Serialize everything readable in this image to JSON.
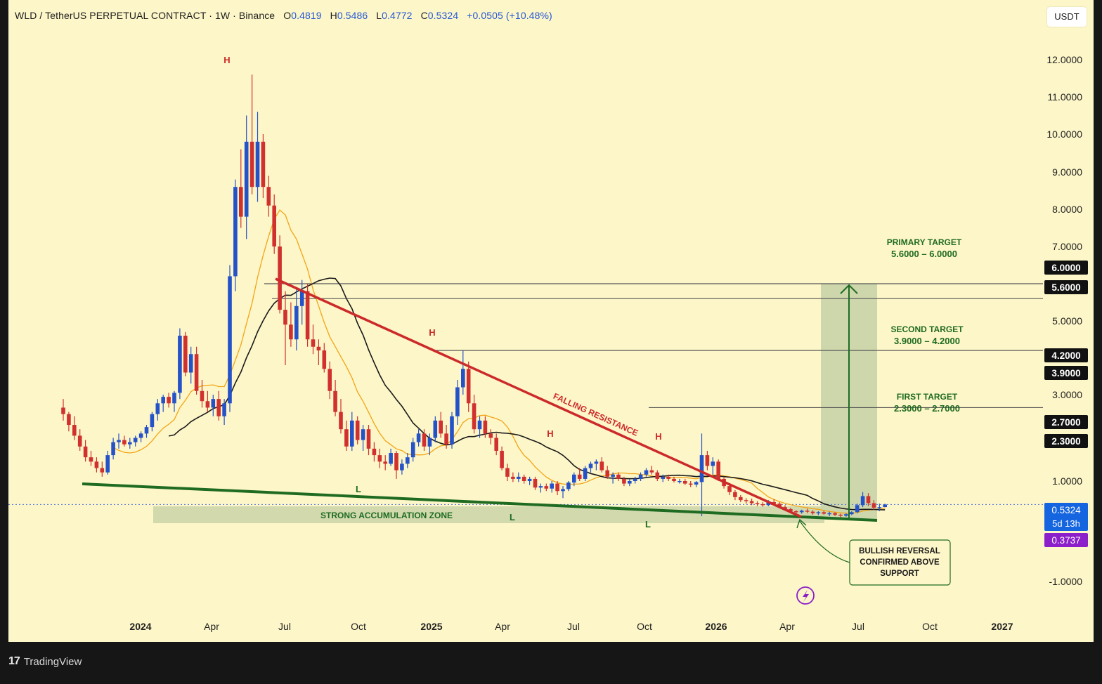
{
  "header": {
    "title": "WLD / TetherUS PERPETUAL CONTRACT · 1W · Binance",
    "open_label": "O",
    "open": "0.4819",
    "high_label": "H",
    "high": "0.5486",
    "low_label": "L",
    "low": "0.4772",
    "close_label": "C",
    "close": "0.5324",
    "change": "+0.0505 (+10.48%)"
  },
  "unit_button": "USDT",
  "footer": {
    "brand": "TradingView",
    "logo": "17"
  },
  "colors": {
    "background": "#fdf6c8",
    "bull": "#2452c9",
    "bear": "#d0312f",
    "resistance": "#cc2a2a",
    "support": "#1f6b22",
    "ema_fast": "#f2a516",
    "ema_slow": "#1a1a1a",
    "target_zone": "#c9d4a8",
    "last_price": "#1565e0",
    "countdown": "#8b1fc9"
  },
  "chart_data": {
    "type": "candlestick",
    "symbol": "WLD / TetherUS PERPETUAL CONTRACT",
    "interval": "1W",
    "exchange": "Binance",
    "y_axis": {
      "ticks": [
        "12.0000",
        "11.0000",
        "10.0000",
        "9.0000",
        "8.0000",
        "7.0000",
        "5.0000",
        "3.0000",
        "1.0000",
        "-1.0000"
      ],
      "tick_values": [
        12,
        11,
        10,
        9,
        8,
        7,
        5,
        3,
        1,
        -1
      ],
      "range": [
        -1.0,
        12.0
      ]
    },
    "x_axis": {
      "ticks": [
        "2024",
        "Apr",
        "Jul",
        "Oct",
        "2025",
        "Apr",
        "Jul",
        "Oct",
        "2026",
        "Apr",
        "Jul",
        "Oct",
        "2027"
      ],
      "bold": [
        true,
        false,
        false,
        false,
        true,
        false,
        false,
        false,
        true,
        false,
        false,
        false,
        true
      ]
    },
    "price_labels": [
      {
        "text": "6.0000",
        "value": 6.0,
        "kind": "level"
      },
      {
        "text": "5.6000",
        "value": 5.6,
        "kind": "level"
      },
      {
        "text": "4.2000",
        "value": 4.2,
        "kind": "level"
      },
      {
        "text": "3.9000",
        "value": 3.9,
        "kind": "level"
      },
      {
        "text": "2.7000",
        "value": 2.7,
        "kind": "level"
      },
      {
        "text": "2.3000",
        "value": 2.3,
        "kind": "level"
      },
      {
        "text": "0.5324",
        "value": 0.5324,
        "kind": "last"
      },
      {
        "text": "5d 13h",
        "kind": "countdown"
      },
      {
        "text": "0.3737",
        "value": 0.3737,
        "kind": "marker"
      }
    ],
    "targets": [
      {
        "title": "PRIMARY TARGET",
        "range": "5.6000 – 6.0000",
        "low": 5.6,
        "high": 6.0
      },
      {
        "title": "SECOND TARGET",
        "range": "3.9000 – 4.2000",
        "low": 3.9,
        "high": 4.2
      },
      {
        "title": "FIRST TARGET",
        "range": "2.3000 – 2.7000",
        "low": 2.3,
        "high": 2.7
      }
    ],
    "annotations": {
      "falling_resistance": "FALLING RESISTANCE",
      "accumulation_zone": "STRONG ACCUMULATION ZONE",
      "bullish_callout": [
        "BULLISH REVERSAL",
        "CONFIRMED ABOVE",
        "SUPPORT"
      ],
      "high_marker": "H",
      "low_marker": "L"
    },
    "candles": [
      [
        2.7,
        2.9,
        2.4,
        2.55
      ],
      [
        2.55,
        2.6,
        2.15,
        2.3
      ],
      [
        2.3,
        2.5,
        1.95,
        2.05
      ],
      [
        2.05,
        2.2,
        1.7,
        1.8
      ],
      [
        1.8,
        1.95,
        1.45,
        1.55
      ],
      [
        1.55,
        1.7,
        1.35,
        1.45
      ],
      [
        1.45,
        1.55,
        1.2,
        1.3
      ],
      [
        1.3,
        1.45,
        1.1,
        1.2
      ],
      [
        1.2,
        1.7,
        1.15,
        1.6
      ],
      [
        1.6,
        2.0,
        1.5,
        1.9
      ],
      [
        1.9,
        2.1,
        1.75,
        1.95
      ],
      [
        1.95,
        2.05,
        1.8,
        1.85
      ],
      [
        1.85,
        2.0,
        1.75,
        1.9
      ],
      [
        1.9,
        2.05,
        1.8,
        2.0
      ],
      [
        2.0,
        2.15,
        1.9,
        2.1
      ],
      [
        2.1,
        2.3,
        2.0,
        2.25
      ],
      [
        2.25,
        2.6,
        2.15,
        2.55
      ],
      [
        2.55,
        2.9,
        2.4,
        2.8
      ],
      [
        2.8,
        3.0,
        2.6,
        2.95
      ],
      [
        2.95,
        3.05,
        2.7,
        2.8
      ],
      [
        2.8,
        3.1,
        2.6,
        3.05
      ],
      [
        3.05,
        4.8,
        2.9,
        4.6
      ],
      [
        4.6,
        4.7,
        3.5,
        3.6
      ],
      [
        3.6,
        4.3,
        3.3,
        4.1
      ],
      [
        4.1,
        4.3,
        3.0,
        3.1
      ],
      [
        3.1,
        3.4,
        2.7,
        2.85
      ],
      [
        2.85,
        3.1,
        2.6,
        2.7
      ],
      [
        2.7,
        3.0,
        2.5,
        2.9
      ],
      [
        2.9,
        3.1,
        2.4,
        2.5
      ],
      [
        2.5,
        2.9,
        2.3,
        2.8
      ],
      [
        2.8,
        6.5,
        2.6,
        6.2
      ],
      [
        6.2,
        8.8,
        5.8,
        8.6
      ],
      [
        8.6,
        9.6,
        7.5,
        7.8
      ],
      [
        7.8,
        10.5,
        7.2,
        9.8
      ],
      [
        9.8,
        11.6,
        8.4,
        8.6
      ],
      [
        8.6,
        10.6,
        8.2,
        9.8
      ],
      [
        9.8,
        10.0,
        8.3,
        8.6
      ],
      [
        8.6,
        8.9,
        7.8,
        8.1
      ],
      [
        8.1,
        8.4,
        6.8,
        7.0
      ],
      [
        7.0,
        7.3,
        5.2,
        5.3
      ],
      [
        5.3,
        5.8,
        3.8,
        4.9
      ],
      [
        4.9,
        5.5,
        4.3,
        4.5
      ],
      [
        4.5,
        5.9,
        4.2,
        5.4
      ],
      [
        5.4,
        6.1,
        4.9,
        5.8
      ],
      [
        5.8,
        6.0,
        4.3,
        4.5
      ],
      [
        4.5,
        4.9,
        4.1,
        4.3
      ],
      [
        4.3,
        4.5,
        3.8,
        4.2
      ],
      [
        4.2,
        4.4,
        3.6,
        3.7
      ],
      [
        3.7,
        3.9,
        2.9,
        3.1
      ],
      [
        3.1,
        3.4,
        2.5,
        2.6
      ],
      [
        2.6,
        2.9,
        2.1,
        2.2
      ],
      [
        2.2,
        2.4,
        1.7,
        1.8
      ],
      [
        1.8,
        2.6,
        1.7,
        2.4
      ],
      [
        2.4,
        2.5,
        1.85,
        1.95
      ],
      [
        1.95,
        2.3,
        1.7,
        2.2
      ],
      [
        2.2,
        2.3,
        1.6,
        1.75
      ],
      [
        1.75,
        1.9,
        1.45,
        1.6
      ],
      [
        1.6,
        1.75,
        1.3,
        1.45
      ],
      [
        1.45,
        1.6,
        1.25,
        1.4
      ],
      [
        1.4,
        1.75,
        1.35,
        1.65
      ],
      [
        1.65,
        1.7,
        1.05,
        1.25
      ],
      [
        1.25,
        1.5,
        1.15,
        1.4
      ],
      [
        1.4,
        1.65,
        1.3,
        1.55
      ],
      [
        1.55,
        2.0,
        1.45,
        1.9
      ],
      [
        1.9,
        2.2,
        1.8,
        2.1
      ],
      [
        2.1,
        2.2,
        1.7,
        1.8
      ],
      [
        1.8,
        2.1,
        1.6,
        2.0
      ],
      [
        2.0,
        2.5,
        1.9,
        2.4
      ],
      [
        2.4,
        2.6,
        2.0,
        2.1
      ],
      [
        2.1,
        2.3,
        1.75,
        1.85
      ],
      [
        1.85,
        2.6,
        1.75,
        2.5
      ],
      [
        2.5,
        3.4,
        2.3,
        3.2
      ],
      [
        3.2,
        4.2,
        3.0,
        3.7
      ],
      [
        3.7,
        3.9,
        2.6,
        2.8
      ],
      [
        2.8,
        3.0,
        2.1,
        2.2
      ],
      [
        2.2,
        2.5,
        2.0,
        2.4
      ],
      [
        2.4,
        2.5,
        2.0,
        2.1
      ],
      [
        2.1,
        2.2,
        1.85,
        2.0
      ],
      [
        2.0,
        2.1,
        1.6,
        1.7
      ],
      [
        1.7,
        1.8,
        1.25,
        1.3
      ],
      [
        1.3,
        1.4,
        1.0,
        1.1
      ],
      [
        1.1,
        1.2,
        0.98,
        1.05
      ],
      [
        1.05,
        1.2,
        0.98,
        1.1
      ],
      [
        1.1,
        1.15,
        0.95,
        1.0
      ],
      [
        1.0,
        1.1,
        0.92,
        1.05
      ],
      [
        1.05,
        1.1,
        0.82,
        0.87
      ],
      [
        0.87,
        0.95,
        0.77,
        0.9
      ],
      [
        0.9,
        0.95,
        0.8,
        0.85
      ],
      [
        0.85,
        1.0,
        0.77,
        0.95
      ],
      [
        0.95,
        1.0,
        0.72,
        0.8
      ],
      [
        0.8,
        0.9,
        0.66,
        0.84
      ],
      [
        0.84,
        1.0,
        0.8,
        0.97
      ],
      [
        0.97,
        1.2,
        0.9,
        1.15
      ],
      [
        1.15,
        1.3,
        1.0,
        1.05
      ],
      [
        1.05,
        1.35,
        1.0,
        1.3
      ],
      [
        1.3,
        1.45,
        1.2,
        1.4
      ],
      [
        1.4,
        1.5,
        1.25,
        1.45
      ],
      [
        1.45,
        1.55,
        1.2,
        1.25
      ],
      [
        1.25,
        1.35,
        1.05,
        1.1
      ],
      [
        1.1,
        1.2,
        0.95,
        1.15
      ],
      [
        1.15,
        1.2,
        1.0,
        1.05
      ],
      [
        1.05,
        1.1,
        0.9,
        0.95
      ],
      [
        0.95,
        1.05,
        0.9,
        1.0
      ],
      [
        1.0,
        1.1,
        0.95,
        1.05
      ],
      [
        1.05,
        1.2,
        1.0,
        1.15
      ],
      [
        1.15,
        1.3,
        1.1,
        1.25
      ],
      [
        1.25,
        1.35,
        1.15,
        1.2
      ],
      [
        1.2,
        1.25,
        1.0,
        1.05
      ],
      [
        1.05,
        1.15,
        0.98,
        1.1
      ],
      [
        1.1,
        1.15,
        1.0,
        1.05
      ],
      [
        1.05,
        1.1,
        0.97,
        1.0
      ],
      [
        1.0,
        1.05,
        0.95,
        1.0
      ],
      [
        1.0,
        1.05,
        0.92,
        0.95
      ],
      [
        0.95,
        1.0,
        0.88,
        0.93
      ],
      [
        0.93,
        1.0,
        0.88,
        0.98
      ],
      [
        0.98,
        2.1,
        0.3,
        1.6
      ],
      [
        1.6,
        1.7,
        1.25,
        1.35
      ],
      [
        1.35,
        1.55,
        1.15,
        1.45
      ],
      [
        1.45,
        1.5,
        1.0,
        1.05
      ],
      [
        1.05,
        1.1,
        0.85,
        0.9
      ],
      [
        0.9,
        0.95,
        0.72,
        0.78
      ],
      [
        0.78,
        0.82,
        0.62,
        0.68
      ],
      [
        0.68,
        0.72,
        0.58,
        0.62
      ],
      [
        0.62,
        0.66,
        0.55,
        0.6
      ],
      [
        0.6,
        0.65,
        0.52,
        0.56
      ],
      [
        0.56,
        0.6,
        0.5,
        0.54
      ],
      [
        0.54,
        0.58,
        0.49,
        0.52
      ],
      [
        0.52,
        0.62,
        0.5,
        0.58
      ],
      [
        0.58,
        0.64,
        0.52,
        0.55
      ],
      [
        0.55,
        0.58,
        0.46,
        0.48
      ],
      [
        0.48,
        0.52,
        0.42,
        0.44
      ],
      [
        0.44,
        0.47,
        0.38,
        0.4
      ],
      [
        0.4,
        0.42,
        0.34,
        0.38
      ],
      [
        0.38,
        0.43,
        0.35,
        0.41
      ],
      [
        0.41,
        0.45,
        0.36,
        0.39
      ],
      [
        0.39,
        0.42,
        0.33,
        0.36
      ],
      [
        0.36,
        0.4,
        0.32,
        0.38
      ],
      [
        0.38,
        0.41,
        0.33,
        0.35
      ],
      [
        0.35,
        0.39,
        0.3,
        0.36
      ],
      [
        0.36,
        0.38,
        0.3,
        0.33
      ],
      [
        0.33,
        0.35,
        0.28,
        0.31
      ],
      [
        0.31,
        0.36,
        0.29,
        0.34
      ],
      [
        0.34,
        0.4,
        0.32,
        0.38
      ],
      [
        0.38,
        0.55,
        0.36,
        0.52
      ],
      [
        0.52,
        0.78,
        0.48,
        0.7
      ],
      [
        0.7,
        0.76,
        0.5,
        0.56
      ],
      [
        0.56,
        0.62,
        0.42,
        0.47
      ],
      [
        0.47,
        0.55,
        0.4,
        0.48
      ],
      [
        0.4819,
        0.5486,
        0.4772,
        0.5324
      ]
    ]
  }
}
